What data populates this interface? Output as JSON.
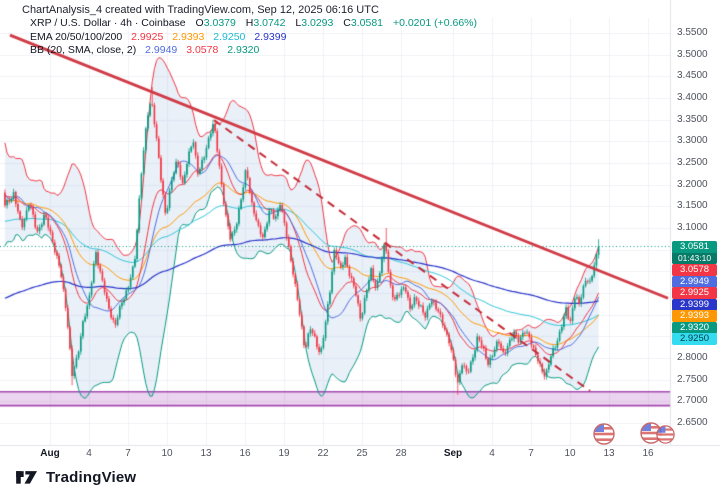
{
  "header": {
    "watermark_title": "ChartAnalysis_4 created with TradingView.com, Sep 12, 2025 06:16 UTC"
  },
  "legend": {
    "symbol": {
      "title": "XRP / U.S. Dollar · 4h · Coinbase",
      "o_label": "O",
      "o": "3.0379",
      "h_label": "H",
      "h": "3.0742",
      "l_label": "L",
      "l": "3.0293",
      "c_label": "C",
      "c": "3.0581",
      "change": "+0.0201 (+0.66%)"
    },
    "ema": {
      "label": "EMA 20/50/100/200",
      "v1": "2.9925",
      "v2": "2.9393",
      "v3": "2.9250",
      "v4": "2.9399"
    },
    "bb": {
      "label": "BB (20, SMA, close, 2)",
      "v1": "2.9949",
      "v2": "3.0578",
      "v3": "2.9320"
    }
  },
  "price_axis": {
    "labels": [
      "3.5500",
      "3.5000",
      "3.4500",
      "3.4000",
      "3.3500",
      "3.3000",
      "3.2500",
      "3.2000",
      "3.1500",
      "3.1000",
      "3.0500",
      "3.0000",
      "2.9500",
      "2.9000",
      "2.8500",
      "2.8000",
      "2.7500",
      "2.7000",
      "2.6500"
    ],
    "badges": [
      {
        "price": 3.0581,
        "text": "3.0581",
        "bg": "#089981",
        "fg": "#ffffff",
        "countdown": "01:43:10",
        "countdown_bg": "#077a68"
      },
      {
        "price": 3.0578,
        "text": "3.0578",
        "bg": "#f23645",
        "fg": "#ffffff"
      },
      {
        "price": 2.9949,
        "text": "2.9949",
        "bg": "#4f6de0",
        "fg": "#ffffff"
      },
      {
        "price": 2.9925,
        "text": "2.9925",
        "bg": "#f23645",
        "fg": "#ffffff"
      },
      {
        "price": 2.9399,
        "text": "2.9399",
        "bg": "#2a35c9",
        "fg": "#ffffff"
      },
      {
        "price": 2.9393,
        "text": "2.9393",
        "bg": "#ff9800",
        "fg": "#ffffff"
      },
      {
        "price": 2.932,
        "text": "2.9320",
        "bg": "#089981",
        "fg": "#ffffff"
      },
      {
        "price": 2.925,
        "text": "2.9250",
        "bg": "#35dcf0",
        "fg": "#073a42"
      }
    ]
  },
  "time_axis": {
    "ticks": [
      {
        "label": "Aug",
        "day": 0,
        "bold": true
      },
      {
        "label": "4",
        "day": 3
      },
      {
        "label": "7",
        "day": 6
      },
      {
        "label": "10",
        "day": 9
      },
      {
        "label": "13",
        "day": 12
      },
      {
        "label": "16",
        "day": 15
      },
      {
        "label": "19",
        "day": 18
      },
      {
        "label": "22",
        "day": 21
      },
      {
        "label": "25",
        "day": 24
      },
      {
        "label": "28",
        "day": 27
      },
      {
        "label": "Sep",
        "day": 31,
        "bold": true
      },
      {
        "label": "4",
        "day": 34
      },
      {
        "label": "7",
        "day": 37
      },
      {
        "label": "10",
        "day": 40
      },
      {
        "label": "13",
        "day": 43
      },
      {
        "label": "16",
        "day": 46
      }
    ]
  },
  "footer": {
    "brand": "TradingView"
  },
  "colors": {
    "up": "#089981",
    "down": "#f23645",
    "ema20": "#f23645",
    "ema50": "#ff9800",
    "ema100": "#2bc4d9",
    "ema200": "#2a35c9",
    "bb_basis": "#4f6de0",
    "bb_upper": "#f23645",
    "bb_lower": "#089981",
    "bb_fill": "rgba(120,160,210,0.16)",
    "trend_solid": "#d03a45",
    "trend_dashed": "#c42b38",
    "zone_fill": "rgba(156,39,176,0.20)",
    "zone_edge": "rgba(150,45,165,0.85)",
    "grid": "#f0f2f7",
    "axis_sep": "#e0e3eb",
    "price_line": "#089981"
  },
  "chart_data": {
    "type": "candlestick",
    "symbol": "XRP / U.S. Dollar",
    "exchange": "Coinbase",
    "interval": "4h",
    "title": "ChartAnalysis_4",
    "price_range_visible": [
      2.65,
      3.55
    ],
    "grid_step": 0.05,
    "current_price": 3.0581,
    "change": 0.0201,
    "change_pct": 0.66,
    "last_candle": {
      "o": 3.0379,
      "h": 3.0742,
      "l": 3.0293,
      "c": 3.0581
    },
    "gen": {
      "start_day": -6.8,
      "end_day": 42.25,
      "candles_per_day": 6
    },
    "price_path": [
      [
        -6.8,
        3.36
      ],
      [
        -6.0,
        3.08
      ],
      [
        -5.2,
        3.28
      ],
      [
        -4.4,
        3.07
      ],
      [
        -3.8,
        3.22
      ],
      [
        -3.5,
        3.15
      ],
      [
        -2.8,
        3.18
      ],
      [
        -2.2,
        3.1
      ],
      [
        -1.6,
        3.16
      ],
      [
        -1.0,
        3.09
      ],
      [
        -0.4,
        3.13
      ],
      [
        0.2,
        3.07
      ],
      [
        0.8,
        3.0
      ],
      [
        1.3,
        2.9
      ],
      [
        1.7,
        2.76
      ],
      [
        2.1,
        2.8
      ],
      [
        2.5,
        2.88
      ],
      [
        3.0,
        2.93
      ],
      [
        3.5,
        3.05
      ],
      [
        3.9,
        2.99
      ],
      [
        4.4,
        2.93
      ],
      [
        5.0,
        2.87
      ],
      [
        5.5,
        2.93
      ],
      [
        6.0,
        2.96
      ],
      [
        6.5,
        3.02
      ],
      [
        7.0,
        3.22
      ],
      [
        7.5,
        3.36
      ],
      [
        7.8,
        3.4
      ],
      [
        8.1,
        3.33
      ],
      [
        8.5,
        3.22
      ],
      [
        8.9,
        3.13
      ],
      [
        9.3,
        3.2
      ],
      [
        9.8,
        3.26
      ],
      [
        10.2,
        3.2
      ],
      [
        10.7,
        3.27
      ],
      [
        11.0,
        3.31
      ],
      [
        11.4,
        3.22
      ],
      [
        11.9,
        3.27
      ],
      [
        12.3,
        3.32
      ],
      [
        12.6,
        3.34
      ],
      [
        13.0,
        3.25
      ],
      [
        13.5,
        3.13
      ],
      [
        13.9,
        3.07
      ],
      [
        14.4,
        3.12
      ],
      [
        14.8,
        3.18
      ],
      [
        15.1,
        3.24
      ],
      [
        15.5,
        3.16
      ],
      [
        16.0,
        3.1
      ],
      [
        16.4,
        3.08
      ],
      [
        16.9,
        3.14
      ],
      [
        17.3,
        3.12
      ],
      [
        17.7,
        3.16
      ],
      [
        18.2,
        3.08
      ],
      [
        18.7,
        3.0
      ],
      [
        19.2,
        2.9
      ],
      [
        19.6,
        2.82
      ],
      [
        20.0,
        2.87
      ],
      [
        20.4,
        2.84
      ],
      [
        20.8,
        2.81
      ],
      [
        21.2,
        2.88
      ],
      [
        21.6,
        2.97
      ],
      [
        21.9,
        3.06
      ],
      [
        22.3,
        3.0
      ],
      [
        22.7,
        3.03
      ],
      [
        23.1,
        2.99
      ],
      [
        23.5,
        2.95
      ],
      [
        23.9,
        2.89
      ],
      [
        24.3,
        2.95
      ],
      [
        24.7,
        3.0
      ],
      [
        25.1,
        2.96
      ],
      [
        25.5,
        3.02
      ],
      [
        25.8,
        3.07
      ],
      [
        26.1,
        2.98
      ],
      [
        26.5,
        2.93
      ],
      [
        26.9,
        2.95
      ],
      [
        27.3,
        2.97
      ],
      [
        27.7,
        2.91
      ],
      [
        28.1,
        2.94
      ],
      [
        28.5,
        2.92
      ],
      [
        28.9,
        2.89
      ],
      [
        29.3,
        2.94
      ],
      [
        29.8,
        2.91
      ],
      [
        30.2,
        2.88
      ],
      [
        30.7,
        2.84
      ],
      [
        31.1,
        2.78
      ],
      [
        31.35,
        2.74
      ],
      [
        31.7,
        2.79
      ],
      [
        32.1,
        2.76
      ],
      [
        32.5,
        2.8
      ],
      [
        32.9,
        2.85
      ],
      [
        33.3,
        2.82
      ],
      [
        33.7,
        2.79
      ],
      [
        34.1,
        2.81
      ],
      [
        34.5,
        2.84
      ],
      [
        34.9,
        2.81
      ],
      [
        35.3,
        2.83
      ],
      [
        35.7,
        2.86
      ],
      [
        36.1,
        2.84
      ],
      [
        36.5,
        2.86
      ],
      [
        36.9,
        2.85
      ],
      [
        37.3,
        2.81
      ],
      [
        37.7,
        2.78
      ],
      [
        38.1,
        2.76
      ],
      [
        38.5,
        2.8
      ],
      [
        38.9,
        2.83
      ],
      [
        39.3,
        2.87
      ],
      [
        39.7,
        2.91
      ],
      [
        40.0,
        2.88
      ],
      [
        40.4,
        2.95
      ],
      [
        40.7,
        2.92
      ],
      [
        41.0,
        2.96
      ],
      [
        41.3,
        2.99
      ],
      [
        41.6,
        2.97
      ],
      [
        41.9,
        3.02
      ],
      [
        42.1,
        3.04
      ],
      [
        42.25,
        3.058
      ]
    ],
    "wick_spikes": [
      {
        "day": 1.7,
        "low": 2.737
      },
      {
        "day": 7.8,
        "high": 3.425
      },
      {
        "day": 12.6,
        "high": 3.35
      },
      {
        "day": 25.8,
        "high": 3.1
      },
      {
        "day": 31.35,
        "low": 2.715
      },
      {
        "day": 38.1,
        "low": 2.75
      }
    ],
    "indicators": {
      "ema": {
        "periods": [
          20,
          50,
          100,
          200
        ],
        "current": [
          2.9925,
          2.9393,
          2.925,
          2.9399
        ],
        "seeds": [
          3.18,
          3.14,
          3.08,
          2.88
        ]
      },
      "bb": {
        "period": 20,
        "source": "SMA close",
        "stdev": 2,
        "current_basis": 2.9949,
        "current_upper": 3.0578,
        "current_lower": 2.932
      }
    },
    "drawings": {
      "trendlines": [
        {
          "style": "solid",
          "from": [
            -3.08,
            3.545
          ],
          "to": [
            47.54,
            2.938
          ]
        },
        {
          "style": "dashed",
          "from": [
            12.62,
            3.349
          ],
          "to": [
            41.54,
            2.724
          ]
        }
      ],
      "zone": {
        "top": 2.722,
        "bottom": 2.69
      }
    }
  }
}
